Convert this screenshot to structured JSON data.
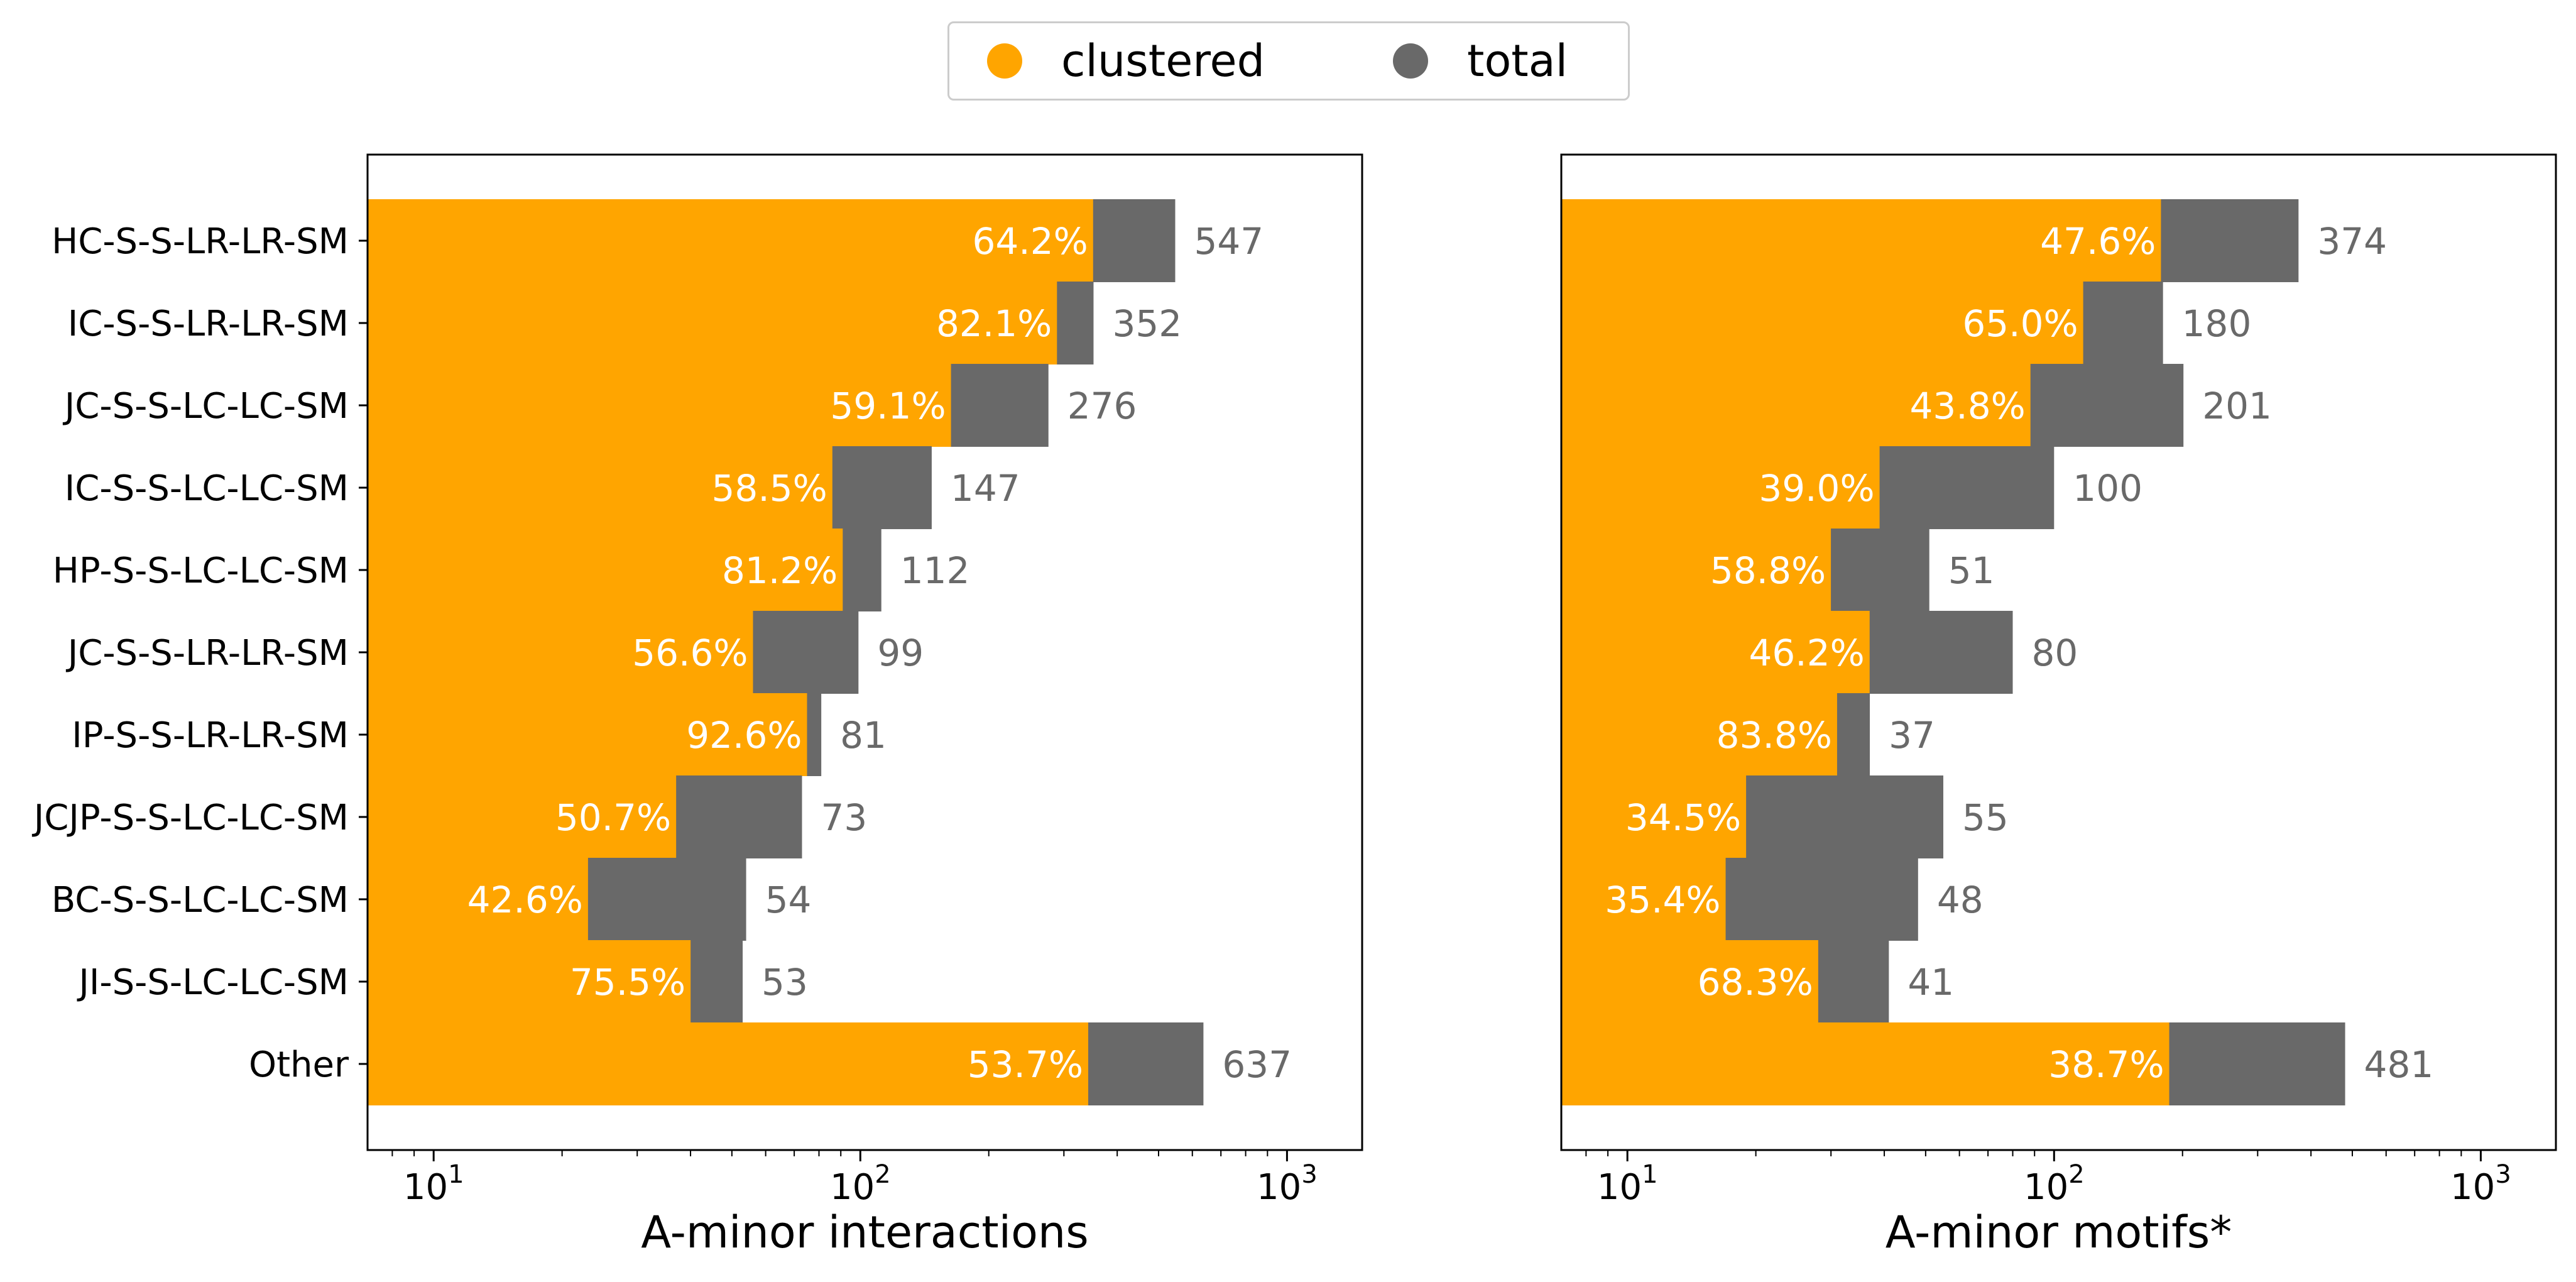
{
  "legend": {
    "items": [
      {
        "label": "clustered",
        "color": "#FFA500"
      },
      {
        "label": "total",
        "color": "#696969"
      }
    ]
  },
  "chart_data": [
    {
      "type": "bar",
      "orientation": "horizontal",
      "xscale": "log",
      "xlim": [
        7,
        1500
      ],
      "xlabel": "A-minor interactions",
      "xticks": [
        {
          "value": 10,
          "base": "10",
          "exp": "1"
        },
        {
          "value": 100,
          "base": "10",
          "exp": "2"
        },
        {
          "value": 1000,
          "base": "10",
          "exp": "3"
        }
      ],
      "categories": [
        "HC-S-S-LR-LR-SM",
        "IC-S-S-LR-LR-SM",
        "JC-S-S-LC-LC-SM",
        "IC-S-S-LC-LC-SM",
        "HP-S-S-LC-LC-SM",
        "JC-S-S-LR-LR-SM",
        "IP-S-S-LR-LR-SM",
        "JCJP-S-S-LC-LC-SM",
        "BC-S-S-LC-LC-SM",
        "JI-S-S-LC-LC-SM",
        "Other"
      ],
      "series": [
        {
          "name": "clustered",
          "color": "#FFA500",
          "percent_labels": [
            "64.2%",
            "82.1%",
            "59.1%",
            "58.5%",
            "81.2%",
            "56.6%",
            "92.6%",
            "50.7%",
            "42.6%",
            "75.5%",
            "53.7%"
          ],
          "percents": [
            64.2,
            82.1,
            59.1,
            58.5,
            81.2,
            56.6,
            92.6,
            50.7,
            42.6,
            75.5,
            53.7
          ]
        },
        {
          "name": "total",
          "color": "#696969",
          "values": [
            547,
            352,
            276,
            147,
            112,
            99,
            81,
            73,
            54,
            53,
            637
          ],
          "value_labels": [
            "547",
            "352",
            "276",
            "147",
            "112",
            "99",
            "81",
            "73",
            "54",
            "53",
            "637"
          ]
        }
      ],
      "show_ytick_labels": true,
      "grid": false
    },
    {
      "type": "bar",
      "orientation": "horizontal",
      "xscale": "log",
      "xlim": [
        7,
        1500
      ],
      "xlabel": "A-minor motifs*",
      "xticks": [
        {
          "value": 10,
          "base": "10",
          "exp": "1"
        },
        {
          "value": 100,
          "base": "10",
          "exp": "2"
        },
        {
          "value": 1000,
          "base": "10",
          "exp": "3"
        }
      ],
      "categories": [
        "HC-S-S-LR-LR-SM",
        "IC-S-S-LR-LR-SM",
        "JC-S-S-LC-LC-SM",
        "IC-S-S-LC-LC-SM",
        "HP-S-S-LC-LC-SM",
        "JC-S-S-LR-LR-SM",
        "IP-S-S-LR-LR-SM",
        "JCJP-S-S-LC-LC-SM",
        "BC-S-S-LC-LC-SM",
        "JI-S-S-LC-LC-SM",
        "Other"
      ],
      "series": [
        {
          "name": "clustered",
          "color": "#FFA500",
          "percent_labels": [
            "47.6%",
            "65.0%",
            "43.8%",
            "39.0%",
            "58.8%",
            "46.2%",
            "83.8%",
            "34.5%",
            "35.4%",
            "68.3%",
            "38.7%"
          ],
          "percents": [
            47.6,
            65.0,
            43.8,
            39.0,
            58.8,
            46.2,
            83.8,
            34.5,
            35.4,
            68.3,
            38.7
          ]
        },
        {
          "name": "total",
          "color": "#696969",
          "values": [
            374,
            180,
            201,
            100,
            51,
            80,
            37,
            55,
            48,
            41,
            481
          ],
          "value_labels": [
            "374",
            "180",
            "201",
            "100",
            "51",
            "80",
            "37",
            "55",
            "48",
            "41",
            "481"
          ]
        }
      ],
      "show_ytick_labels": false,
      "grid": false
    }
  ]
}
